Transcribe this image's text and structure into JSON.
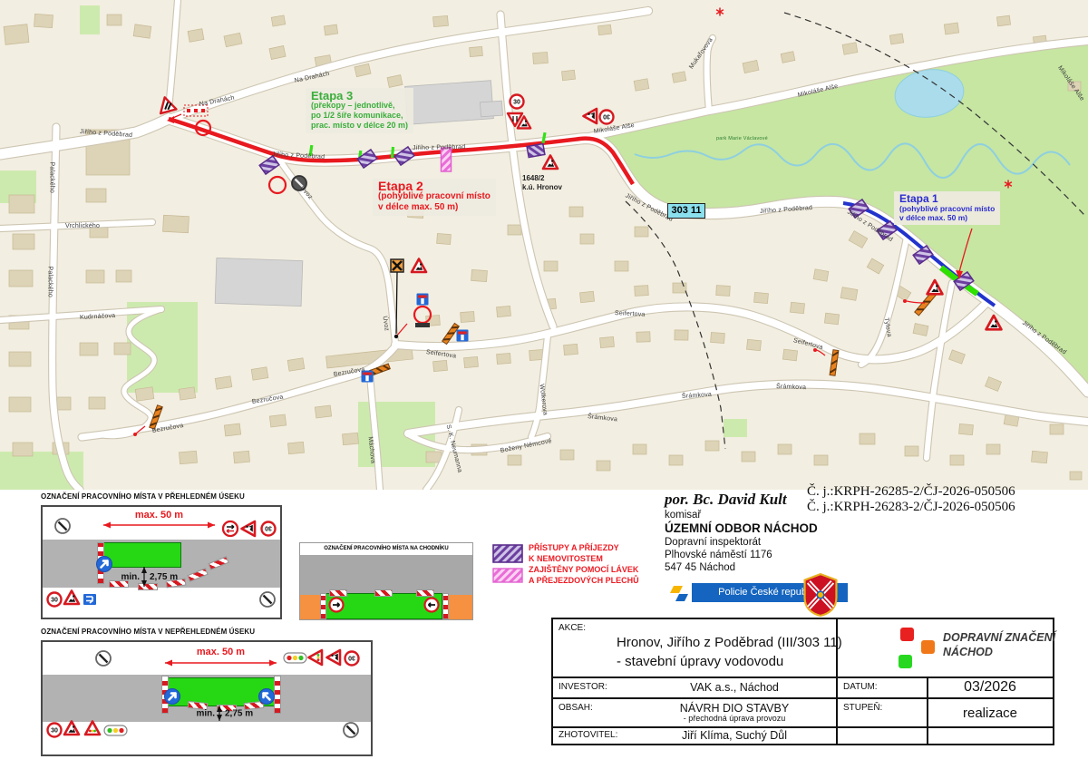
{
  "map": {
    "street_names": {
      "jiriho": "Jiřího z Poděbrad",
      "na_drahach": "Na Drahách",
      "mikolase": "Mikoláše Alše",
      "mukarovova": "Mukařovova",
      "palackeho": "Palackého",
      "vrchlickeho": "Vrchlického",
      "kudrnacova": "Kudrnáčova",
      "uvoz": "Úvoz",
      "seifertova": "Seifertova",
      "bezrucova": "Bezručova",
      "sramkova": "Šrámkova",
      "wolkerova": "Wolkerova",
      "bozeny": "Boženy Němcové",
      "neumanna": "S. K. Neumanna",
      "tylova": "Tylova",
      "machova": "Máchova",
      "park": "park Marie Václavové"
    },
    "road_shield": "303 11",
    "parcel_line1": "1648/2",
    "parcel_line2": "k.ú. Hronov",
    "etapa1": {
      "title": "Etapa 1",
      "line1": "(pohyblivé pracovní místo",
      "line2": "v délce max. 50 m)"
    },
    "etapa2": {
      "title": "Etapa 2",
      "line1": "(pohyblivé pracovní místo",
      "line2": "v délce max. 50 m)"
    },
    "etapa3": {
      "title": "Etapa 3",
      "line1": "(překopy – jednotlivě,",
      "line2": "po 1/2 šíře komunikace,",
      "line3": "prac. místo v délce 20 m)"
    }
  },
  "signs": {
    "speed30": "30"
  },
  "dims": {
    "max": "max. 50 m",
    "min_label": "min.",
    "min_value": "2,75 m"
  },
  "diagrams": {
    "overview_title": "OZNAČENÍ PRACOVNÍHO MÍSTA V PŘEHLEDNÉM ÚSEKU",
    "blind_title": "OZNAČENÍ PRACOVNÍHO MÍSTA V NEPŘEHLEDNÉM ÚSEKU",
    "sidewalk_title": "OZNAČENÍ PRACOVNÍHO MÍSTA NA CHODNÍKU"
  },
  "legend": {
    "lines": [
      "PŘÍSTUPY A PŘÍJEZDY",
      "K NEMOVITOSTEM",
      "ZAJIŠTĚNY POMOCÍ LÁVEK",
      "A PŘEJEZDOVÝCH PLECHŮ"
    ]
  },
  "signature": {
    "name": "por. Bc. David Kult",
    "role": "komisař",
    "office": "ÚZEMNÍ ODBOR NÁCHOD",
    "department": "Dopravní inspektorát",
    "street": "Plhovské náměstí 1176",
    "city": "547 45 Náchod"
  },
  "references": {
    "line1": "Č. j.:KRPH-26285-2/ČJ-2026-050506",
    "line2": "Č. j.:KRPH-26283-2/ČJ-2026-050506"
  },
  "police": {
    "banner": "Policie České republiky"
  },
  "titleblock": {
    "akce_label": "AKCE:",
    "akce_line1": "Hronov, Jiřího z Poděbrad (III/303 11)",
    "akce_line2": "- stavební úpravy vodovodu",
    "investor_label": "INVESTOR:",
    "investor_value": "VAK a.s., Náchod",
    "obsah_label": "OBSAH:",
    "obsah_line1": "NÁVRH DIO STAVBY",
    "obsah_line2": "- přechodná úprava provozu",
    "zhotovitel_label": "ZHOTOVITEL:",
    "zhotovitel_value": "Jiří Klíma, Suchý Důl",
    "datum_label": "DATUM:",
    "datum_value": "03/2026",
    "stupen_label": "STUPEŇ:",
    "stupen_value": "realizace",
    "logo_line1": "DOPRAVNÍ ZNAČENÍ",
    "logo_line2": "NÁCHOD"
  },
  "colors": {
    "etapa1": "#2b2bd0",
    "etapa2": "#e8191f",
    "etapa3": "#3aae3c",
    "route_red": "#e8191f",
    "route_blue": "#2233cc",
    "work_green": "#2fe000",
    "legend_text": "#ed1c24",
    "police_blue": "#1565c0",
    "sidewalk_orange": "#f59140"
  }
}
